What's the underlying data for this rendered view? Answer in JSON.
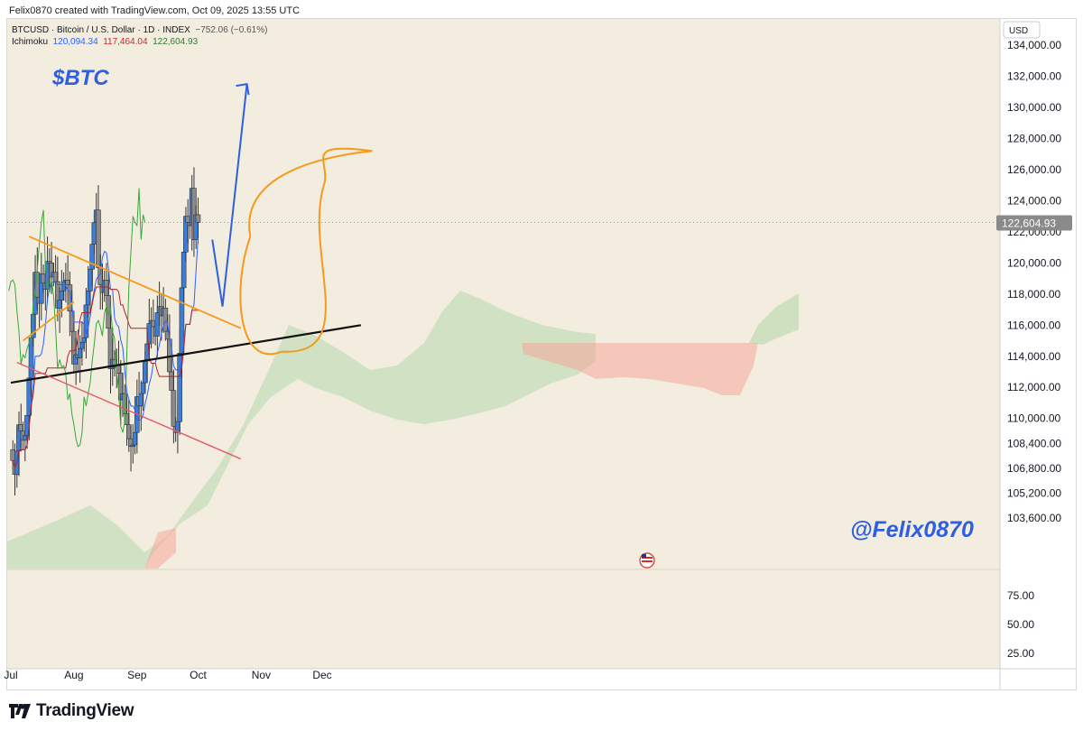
{
  "header": {
    "credit": "Felix0870 created with TradingView.com, Oct 09, 2025 13:55 UTC"
  },
  "legend": {
    "symbol_line": "BTCUSD · Bitcoin / U.S. Dollar · 1D · INDEX",
    "change": "−752.06 (−0.61%)",
    "indicator": "Ichimoku",
    "values": [
      "120,094.34",
      "117,464.04",
      "122,604.93"
    ]
  },
  "currency": "USD",
  "last_price_label": "122,604.93",
  "annotations": {
    "ticker": "$BTC",
    "handle": "@Felix0870"
  },
  "brand": {
    "name": "TradingView"
  },
  "colors": {
    "background": "#f3ede0",
    "bull": "#3b7dd8",
    "bear": "#8a8a8a",
    "tenkan": "#2962ff",
    "kijun": "#b22222",
    "chikou": "#3aa53a",
    "cloud_bull": "#a9d3a0",
    "cloud_bear": "#f4a79b",
    "orange": "#f59a1b",
    "black_line": "#111111",
    "pink_line": "#e25a6a",
    "arrow": "#2f5fe0"
  },
  "chart_data": {
    "type": "candlestick",
    "symbol": "BTCUSD",
    "interval": "1D",
    "x_tick_labels": [
      "Jul",
      "Aug",
      "Sep",
      "Oct",
      "Nov",
      "Dec"
    ],
    "x_range": [
      "2025-07-01",
      "2025-12-20"
    ],
    "y_ticks": [
      134000,
      132000,
      130000,
      128000,
      126000,
      124000,
      122000,
      120000,
      118000,
      116000,
      114000,
      112000,
      110000,
      108400,
      106800,
      105200,
      103600
    ],
    "y_tick_labels": [
      "134,000.00",
      "132,000.00",
      "130,000.00",
      "128,000.00",
      "126,000.00",
      "124,000.00",
      "122,000.00",
      "120,000.00",
      "118,000.00",
      "116,000.00",
      "114,000.00",
      "112,000.00",
      "110,000.00",
      "108,400.00",
      "106,800.00",
      "105,200.00",
      "103,600.00"
    ],
    "lower_pane": {
      "ticks": [
        75,
        50,
        25
      ],
      "tick_labels": [
        "75.00",
        "50.00",
        "25.00"
      ]
    },
    "last_price": 122604.93,
    "candles_close": [
      107300,
      106400,
      107900,
      109600,
      109200,
      108600,
      108900,
      110200,
      112600,
      115200,
      116700,
      119400,
      117800,
      117400,
      119300,
      118700,
      118300,
      120100,
      120000,
      119100,
      119400,
      118800,
      117100,
      117600,
      118200,
      118800,
      118900,
      118600,
      116900,
      115600,
      113500,
      114100,
      113900,
      114500,
      114900,
      115200,
      117300,
      118200,
      119600,
      121200,
      122600,
      123400,
      119700,
      118600,
      118100,
      118900,
      117900,
      115800,
      113200,
      113800,
      113300,
      113400,
      112900,
      111200,
      111600,
      110300,
      109600,
      108700,
      108200,
      108300,
      109100,
      111400,
      110800,
      111600,
      112300,
      113700,
      114800,
      116100,
      116300,
      115900,
      115300,
      116800,
      117200,
      116600,
      117100,
      115600,
      115100,
      113000,
      111800,
      109500,
      109100,
      109800,
      114200,
      118400,
      120700,
      123000,
      122600,
      122400,
      124800,
      121500,
      123100,
      122605
    ],
    "ichimoku": {
      "tenkan": 120094.34,
      "kijun": 117464.04,
      "last_value_3": 122604.93
    },
    "drawings": {
      "forecast_arrow": [
        [
          "2025-10-08",
          121500
        ],
        [
          "2025-10-13",
          117200
        ],
        [
          "2025-10-25",
          131500
        ]
      ],
      "target_ellipse": {
        "from": "2025-10-20",
        "to": "2025-11-30",
        "low": 114300,
        "high": 127200
      },
      "orange_triangle_upper": [
        [
          "2025-07-10",
          121700
        ],
        [
          "2025-10-22",
          115800
        ]
      ],
      "orange_triangle_lower": [
        [
          "2025-07-07",
          115000
        ],
        [
          "2025-08-01",
          117500
        ]
      ],
      "black_trendline": [
        [
          "2025-07-01",
          112300
        ],
        [
          "2025-12-20",
          116000
        ]
      ],
      "pink_channel": [
        [
          "2025-07-04",
          113600
        ],
        [
          "2025-10-22",
          107400
        ]
      ]
    }
  }
}
